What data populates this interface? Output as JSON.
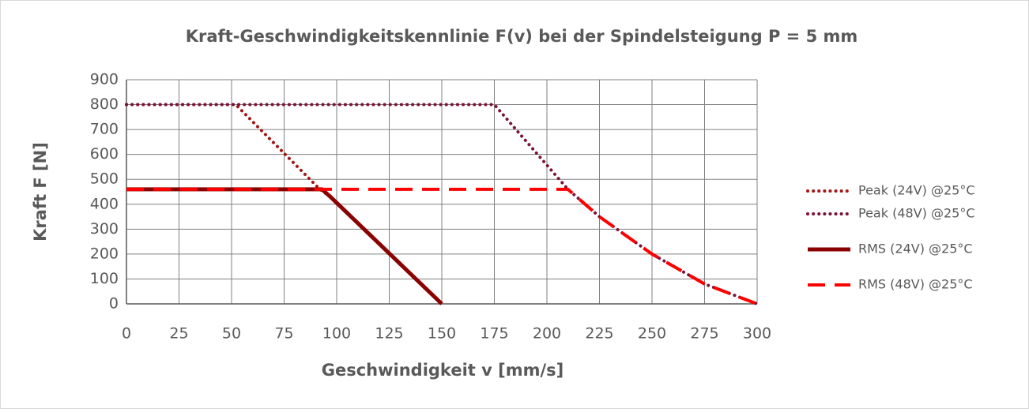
{
  "chart_data": {
    "type": "line",
    "title": "Kraft-Geschwindigkeitskennlinie F(v) bei der Spindelsteigung P = 5 mm",
    "xlabel": "Geschwindigkeit v [mm/s]",
    "ylabel": "Kraft F [N]",
    "xlim": [
      0,
      300
    ],
    "xticks": [
      0,
      25,
      50,
      75,
      100,
      125,
      150,
      175,
      200,
      225,
      250,
      275,
      300
    ],
    "ylim": [
      0,
      900
    ],
    "yticks": [
      0,
      100,
      200,
      300,
      400,
      500,
      600,
      700,
      800,
      900
    ],
    "grid": true,
    "legend": "right",
    "series": [
      {
        "name": "Peak (24V) @25°C",
        "color": "#a31515",
        "style": "dotted",
        "x": [
          0,
          52,
          92,
          97,
          150
        ],
        "values": [
          800,
          800,
          460,
          430,
          0
        ]
      },
      {
        "name": "Peak (48V) @25°C",
        "color": "#7a1238",
        "style": "dotted",
        "x": [
          0,
          175,
          210,
          225,
          250,
          275,
          300
        ],
        "values": [
          800,
          800,
          460,
          350,
          200,
          80,
          0
        ]
      },
      {
        "name": "RMS (24V) @25°C",
        "color": "#8b0000",
        "style": "solid",
        "x": [
          0,
          93,
          97,
          150
        ],
        "values": [
          460,
          460,
          430,
          0
        ]
      },
      {
        "name": "RMS (48V) @25°C",
        "color": "#ff0000",
        "style": "dashed",
        "x": [
          0,
          210,
          225,
          250,
          275,
          300
        ],
        "values": [
          460,
          460,
          350,
          200,
          80,
          0
        ]
      }
    ]
  }
}
